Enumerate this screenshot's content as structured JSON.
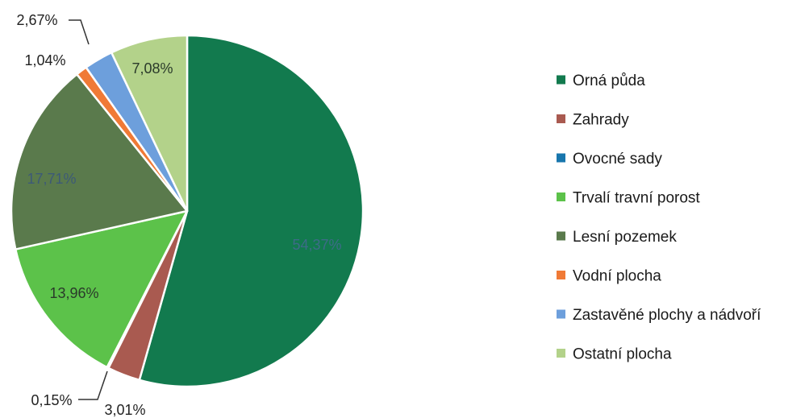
{
  "chart_data": {
    "type": "pie",
    "title": "",
    "legend_position": "right",
    "slices": [
      {
        "label": "Orná půda",
        "value": 54.37,
        "value_label": "54,37%",
        "color": "#127a4e",
        "label_color": "#3d6b88"
      },
      {
        "label": "Zahrady",
        "value": 3.01,
        "value_label": "3,01%",
        "color": "#a95a50",
        "label_color": "#222222"
      },
      {
        "label": "Ovocné sady",
        "value": 0.15,
        "value_label": "0,15%",
        "color": "#1876ad",
        "label_color": "#222222"
      },
      {
        "label": "Trvalí travní porost",
        "value": 13.96,
        "value_label": "13,96%",
        "color": "#5cc24a",
        "label_color": "#2a3a2a"
      },
      {
        "label": "Lesní pozemek",
        "value": 17.71,
        "value_label": "17,71%",
        "color": "#5a7a4c",
        "label_color": "#3d5a77"
      },
      {
        "label": "Vodní plocha",
        "value": 1.04,
        "value_label": "1,04%",
        "color": "#f07a36",
        "label_color": "#222222"
      },
      {
        "label": "Zastavěné plochy a nádvoří",
        "value": 2.67,
        "value_label": "2,67%",
        "color": "#6d9fdc",
        "label_color": "#222222"
      },
      {
        "label": "Ostatní plocha",
        "value": 7.08,
        "value_label": "7,08%",
        "color": "#b3d28a",
        "label_color": "#2a3a2a"
      }
    ]
  }
}
